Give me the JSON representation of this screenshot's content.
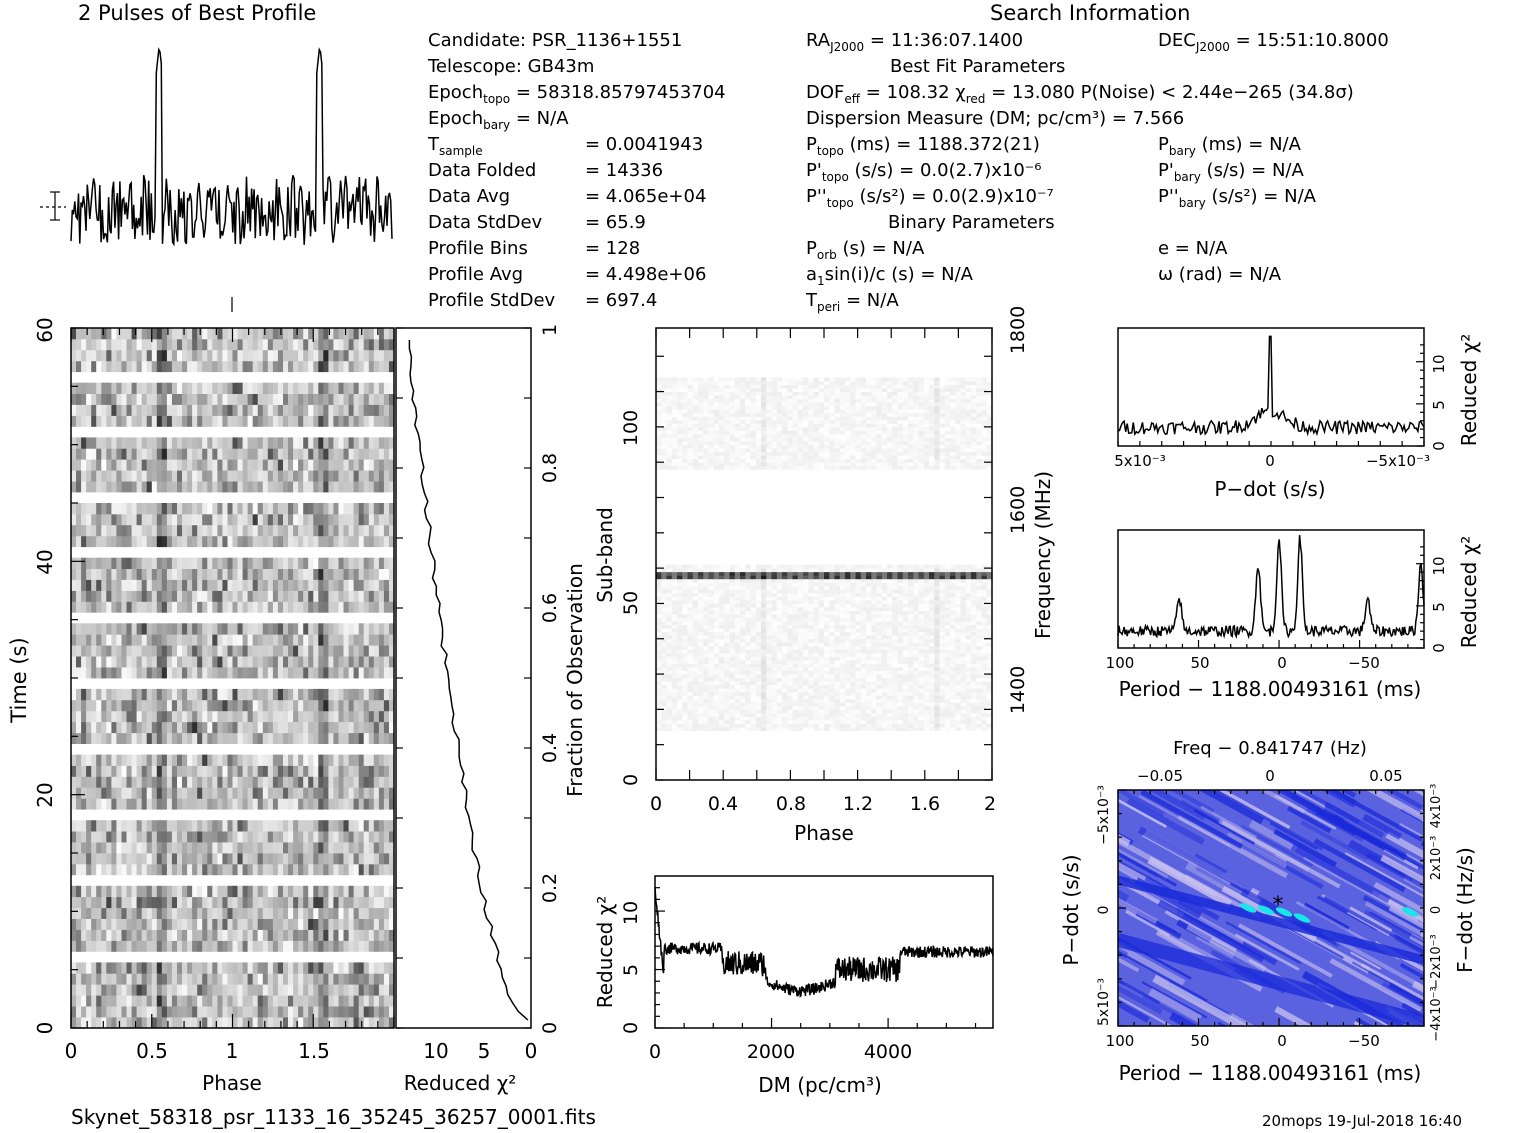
{
  "header": {
    "profile_title": "2 Pulses of Best Profile",
    "search_title": "Search Information",
    "best_fit_title": "Best Fit Parameters",
    "binary_title": "Binary Parameters",
    "filename": "Skynet_58318_psr_1133_16_35245_36257_0001.fits",
    "footer": "20mops 19-Jul-2018 16:40"
  },
  "info_left": [
    {
      "label": "Candidate:  PSR_1136+1551",
      "value": ""
    },
    {
      "label": "Telescope:  GB43m",
      "value": ""
    },
    {
      "label": "Epoch",
      "sub": "topo",
      "value": " = 58318.85797453704"
    },
    {
      "label": "Epoch",
      "sub": "bary",
      "value": " = N/A"
    },
    {
      "label": "T",
      "sub": "sample",
      "value": "=   0.0041943"
    },
    {
      "label": "Data Folded",
      "value": "=   14336"
    },
    {
      "label": "Data Avg",
      "value": "=   4.065e+04"
    },
    {
      "label": "Data StdDev",
      "value": "=   65.9"
    },
    {
      "label": "Profile Bins",
      "value": "=   128"
    },
    {
      "label": "Profile Avg",
      "value": "=   4.498e+06"
    },
    {
      "label": "Profile StdDev",
      "value": "=   697.4"
    }
  ],
  "info_mid": {
    "ra": "RA",
    "ra_sub": "J2000",
    "ra_val": " = 11:36:07.1400",
    "dof_line": "DOF",
    "dof_sub": "eff",
    "dof_val": " = 108.32  χ",
    "chi_sub": "red",
    "chi_val": " = 13.080   P(Noise) < 2.44e−265   (34.8σ)",
    "dm_line": "Dispersion Measure (DM; pc/cm³) = 7.566",
    "ptopo": "P",
    "ptopo_sub": "topo",
    "ptopo_val": " (ms) =   1188.372(21)",
    "pdtopo": "P'",
    "pdtopo_sub": "topo",
    "pdtopo_val": " (s/s) = 0.0(2.7)x10⁻⁶",
    "pddtopo": "P''",
    "pddtopo_sub": "topo",
    "pddtopo_val": " (s/s²) = 0.0(2.9)x10⁻⁷",
    "porb": "P",
    "porb_sub": "orb",
    "porb_val": " (s) = N/A",
    "a1": "a",
    "a1_sub": "1",
    "a1_val": "sin(i)/c (s) = N/A",
    "tperi": "T",
    "tperi_sub": "peri",
    "tperi_val": " = N/A"
  },
  "info_right": {
    "dec": "DEC",
    "dec_sub": "J2000",
    "dec_val": " = 15:51:10.8000",
    "pbary": "P",
    "pbary_sub": "bary",
    "pbary_val": " (ms) = N/A",
    "pdbary": "P'",
    "pdbary_sub": "bary",
    "pdbary_val": " (s/s) = N/A",
    "pddbary": "P''",
    "pddbary_sub": "bary",
    "pddbary_val": " (s/s²) = N/A",
    "ecc": "e = N/A",
    "omega": "ω (rad) = N/A"
  },
  "colors": {
    "line": "#000000",
    "heat_dark": "#1a2ad8",
    "heat_light": "#c9c2ee",
    "heat_peak": "#19e6e6"
  },
  "chart_data": [
    {
      "type": "line",
      "id": "profile",
      "title": "2 Pulses of Best Profile",
      "pulse_phases": [
        0.55,
        1.55
      ],
      "x_range": [
        0,
        2
      ]
    },
    {
      "type": "heatmap",
      "id": "time-phase",
      "xlabel": "Phase",
      "ylabel": "Time (s)",
      "xticks": [
        "0",
        "0.5",
        "1",
        "1.5"
      ],
      "yticks": [
        "0",
        "20",
        "40",
        "60"
      ],
      "xlim": [
        0,
        2
      ],
      "ylim": [
        0,
        60
      ]
    },
    {
      "type": "line",
      "id": "time-chi2",
      "xlabel": "Reduced χ²",
      "ylabel_right": "Fraction of Observation",
      "xticks": [
        "10",
        "5",
        "0"
      ],
      "yticks_right": [
        "0",
        "0.2",
        "0.4",
        "0.6",
        "0.8",
        "1"
      ]
    },
    {
      "type": "heatmap",
      "id": "subband-phase",
      "xlabel": "Phase",
      "ylabel": "Sub-band",
      "ylabel_right": "Frequency (MHz)",
      "xticks": [
        "0",
        "0.4",
        "0.8",
        "1.2",
        "1.6",
        "2"
      ],
      "yticks": [
        "0",
        "50",
        "100"
      ],
      "yticks_right": [
        "1400",
        "1600",
        "1800"
      ],
      "xlim": [
        0,
        2
      ],
      "ylim": [
        0,
        128
      ]
    },
    {
      "type": "line",
      "id": "dm-chi2",
      "xlabel": "DM (pc/cm³)",
      "ylabel": "Reduced χ²",
      "xticks": [
        "0",
        "2000",
        "4000"
      ],
      "yticks": [
        "0",
        "5",
        "10"
      ],
      "xlim": [
        0,
        5800
      ],
      "ylim": [
        0,
        13
      ]
    },
    {
      "type": "line",
      "id": "pdot-chi2",
      "xlabel": "P−dot (s/s)",
      "ylabel_right": "Reduced χ²",
      "xticks": [
        "5x10⁻³",
        "0",
        "−5x10⁻³"
      ],
      "yticks_right": [
        "0",
        "5",
        "10"
      ],
      "peak_x": 0,
      "peak_y": 13
    },
    {
      "type": "line",
      "id": "period-chi2",
      "xlabel": "Period − 1188.00493161 (ms)",
      "ylabel_right": "Reduced χ²",
      "xticks": [
        "100",
        "50",
        "0",
        "−50"
      ],
      "yticks_right": [
        "0",
        "5",
        "10"
      ],
      "peaks": [
        [
          62,
          6
        ],
        [
          13,
          10
        ],
        [
          0,
          13
        ],
        [
          -13,
          13
        ],
        [
          -55,
          6
        ],
        [
          -88,
          10
        ]
      ]
    },
    {
      "type": "heatmap",
      "id": "ppdot",
      "title_top": "Freq − 0.841747 (Hz)",
      "xlabel": "Period − 1188.00493161 (ms)",
      "ylabel": "P−dot (s/s)",
      "ylabel_right": "F−dot (Hz/s)",
      "xticks": [
        "100",
        "50",
        "0",
        "−50"
      ],
      "xticks_top": [
        "−0.05",
        "0",
        "0.05"
      ],
      "yticks": [
        "−5x10⁻³",
        "0",
        "5x10⁻³"
      ],
      "yticks_right": [
        "4x10⁻³",
        "2x10⁻³",
        "0",
        "−2x10⁻³",
        "−4x10⁻³"
      ]
    }
  ]
}
